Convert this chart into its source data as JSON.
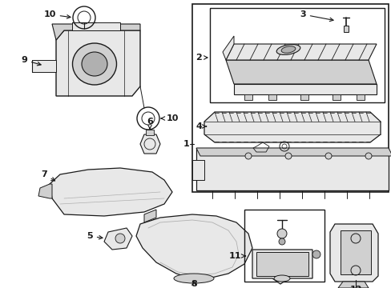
{
  "fig_width": 4.89,
  "fig_height": 3.6,
  "dpi": 100,
  "bg": "#ffffff",
  "lc": "#1a1a1a",
  "gray1": "#e8e8e8",
  "gray2": "#d0d0d0",
  "gray3": "#b0b0b0"
}
